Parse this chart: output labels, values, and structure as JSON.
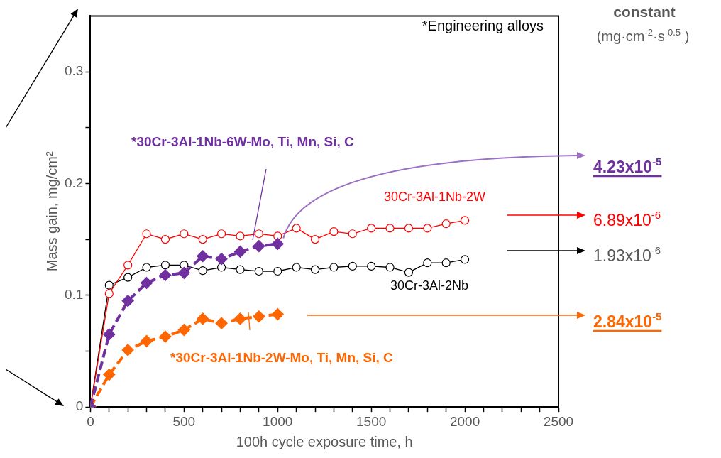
{
  "chart_data": {
    "type": "line",
    "xlabel": "100h cycle exposure time, h",
    "ylabel": "Mass gain, mg/cm²",
    "xlim": [
      0,
      2500
    ],
    "xticks": [
      0,
      {
        "value": 100,
        "label": null
      },
      {
        "value": 200,
        "label": null
      },
      {
        "value": 300,
        "label": null
      },
      {
        "value": 400,
        "label": null
      },
      500,
      {
        "value": 600,
        "label": null
      },
      {
        "value": 700,
        "label": null
      },
      {
        "value": 800,
        "label": null
      },
      {
        "value": 900,
        "label": null
      },
      1000,
      {
        "value": 1100,
        "label": null
      },
      {
        "value": 1200,
        "label": null
      },
      {
        "value": 1300,
        "label": null
      },
      {
        "value": 1400,
        "label": null
      },
      1500,
      {
        "value": 1600,
        "label": null
      },
      {
        "value": 1700,
        "label": null
      },
      {
        "value": 1800,
        "label": null
      },
      {
        "value": 1900,
        "label": null
      },
      2000,
      {
        "value": 2100,
        "label": null
      },
      {
        "value": 2200,
        "label": null
      },
      {
        "value": 2300,
        "label": null
      },
      {
        "value": 2400,
        "label": null
      },
      2500
    ],
    "ylim": [
      0,
      0.35
    ],
    "yticks": [
      0,
      {
        "value": 0.05,
        "label": null
      },
      0.1,
      {
        "value": 0.15,
        "label": null
      },
      0.2,
      {
        "value": 0.25,
        "label": null
      },
      0.3
    ],
    "grid": false,
    "legend": false,
    "series": [
      {
        "name": "*30Cr-3Al-1Nb-6W-Mo, Ti, Mn, Si, C",
        "color": "#7030a0",
        "marker": "diamond",
        "line_style": "dashed",
        "x": [
          0,
          100,
          200,
          300,
          400,
          500,
          600,
          700,
          800,
          900,
          1000
        ],
        "values": [
          0,
          0.065,
          0.095,
          0.111,
          0.118,
          0.12,
          0.135,
          0.1325,
          0.139,
          0.144,
          0.146
        ]
      },
      {
        "name": "30Cr-3Al-1Nb-2W",
        "color": "#ff0000",
        "marker": "circle",
        "line_style": "solid",
        "x": [
          0,
          100,
          200,
          300,
          400,
          500,
          600,
          700,
          800,
          900,
          1000,
          1100,
          1200,
          1300,
          1400,
          1500,
          1600,
          1700,
          1800,
          1900,
          2000
        ],
        "values": [
          0,
          0.1015,
          0.127,
          0.155,
          0.15,
          0.155,
          0.15,
          0.155,
          0.153,
          0.155,
          0.153,
          0.16,
          0.15,
          0.157,
          0.155,
          0.16,
          0.16,
          0.16,
          0.16,
          0.164,
          0.167
        ]
      },
      {
        "name": "30Cr-3Al-2Nb",
        "color": "#000000",
        "marker": "circle",
        "line_style": "solid",
        "x": [
          0,
          100,
          200,
          300,
          400,
          500,
          600,
          700,
          800,
          900,
          1000,
          1100,
          1200,
          1300,
          1400,
          1500,
          1600,
          1700,
          1800,
          1900,
          2000
        ],
        "values": [
          0,
          0.109,
          0.116,
          0.125,
          0.127,
          0.127,
          0.122,
          0.125,
          0.123,
          0.1215,
          0.1215,
          0.125,
          0.123,
          0.125,
          0.126,
          0.126,
          0.125,
          0.1205,
          0.129,
          0.129,
          0.132
        ]
      },
      {
        "name": "*30Cr-3Al-1Nb-2W-Mo, Ti, Mn, Si, C",
        "color": "#ff6600",
        "marker": "diamond",
        "line_style": "dashed",
        "x": [
          0,
          100,
          200,
          300,
          400,
          500,
          600,
          700,
          800,
          900,
          1000
        ],
        "values": [
          0,
          0.029,
          0.051,
          0.059,
          0.063,
          0.069,
          0.079,
          0.075,
          0.079,
          0.081,
          0.083
        ]
      }
    ],
    "annotations": [
      "*Engineering alloys",
      "constant",
      "(mg·cm$^{-2}$·s$^{-0.5}$ )",
      "4.23x10$^{-5}$",
      "6.89x10$^{-6}$",
      "1.93x10$^{-6}$",
      "2.84x10$^{-5}$"
    ]
  }
}
